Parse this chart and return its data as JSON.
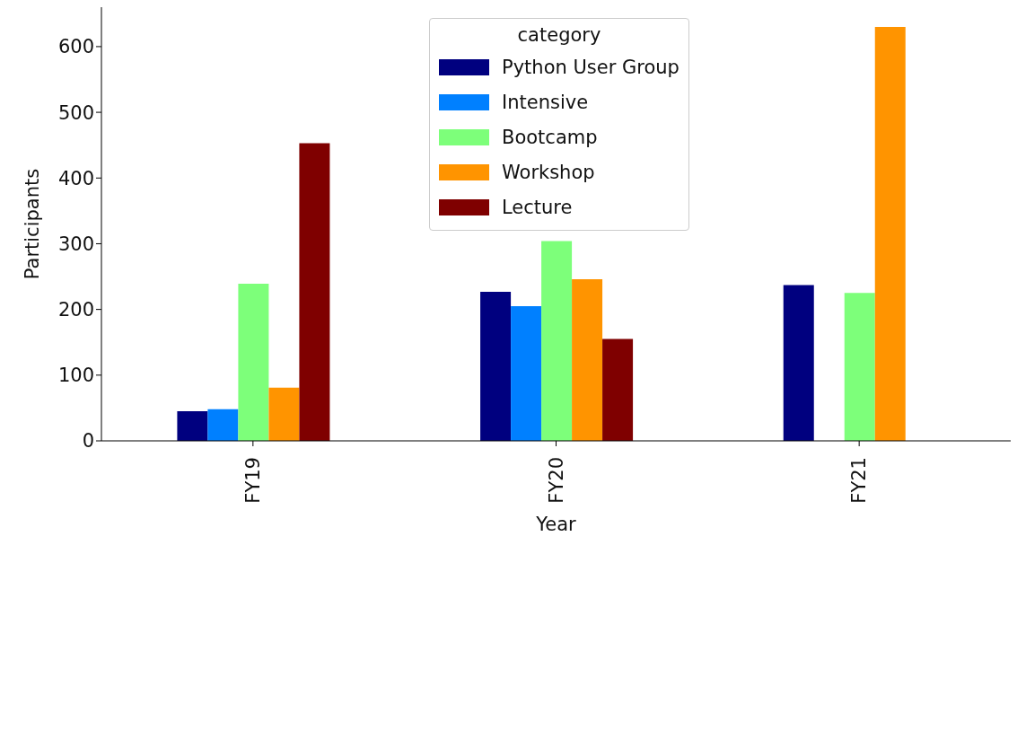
{
  "chart_data": {
    "type": "bar",
    "xlabel": "Year",
    "ylabel": "Participants",
    "legend_title": "category",
    "categories": [
      "FY19",
      "FY20",
      "FY21"
    ],
    "series": [
      {
        "name": "Python User Group",
        "color": "#00007f",
        "values": [
          45,
          227,
          237
        ]
      },
      {
        "name": "Intensive",
        "color": "#0080ff",
        "values": [
          48,
          205,
          null
        ]
      },
      {
        "name": "Bootcamp",
        "color": "#7dff7a",
        "values": [
          239,
          304,
          225
        ]
      },
      {
        "name": "Workshop",
        "color": "#ff9400",
        "values": [
          81,
          246,
          630
        ]
      },
      {
        "name": "Lecture",
        "color": "#7f0000",
        "values": [
          453,
          155,
          null
        ]
      }
    ],
    "ylim": [
      0,
      660
    ],
    "yticks": [
      0,
      100,
      200,
      300,
      400,
      500,
      600
    ],
    "grid": false,
    "legend": "top"
  }
}
